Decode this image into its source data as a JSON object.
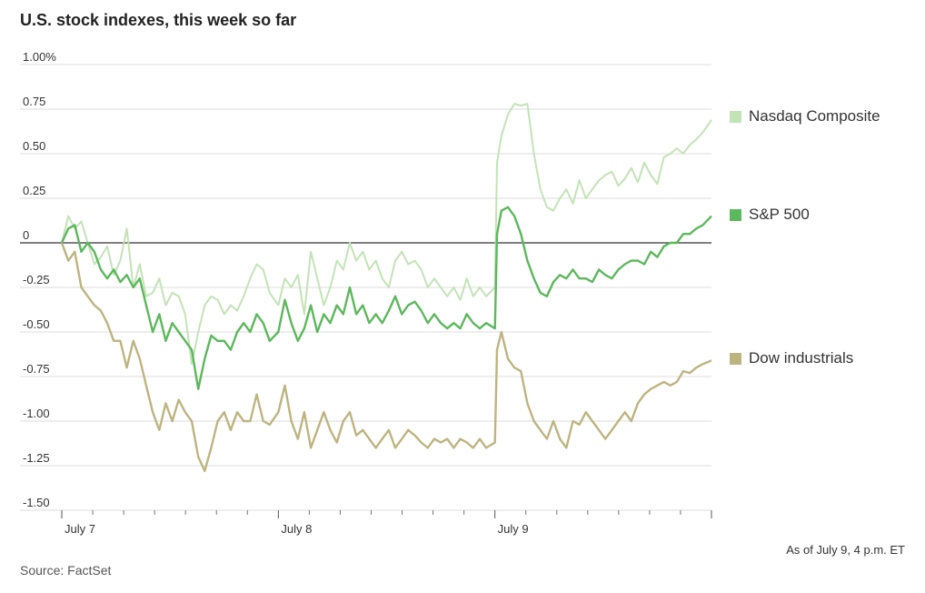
{
  "title": "U.S. stock indexes, this week so far",
  "note": "As of July 9, 4 p.m. ET",
  "source": "Source: FactSet",
  "chart_data": {
    "type": "line",
    "title": "U.S. stock indexes, this week so far",
    "ylim": [
      -1.5,
      1.0
    ],
    "yticks": [
      {
        "value": 1.0,
        "label": "1.00%"
      },
      {
        "value": 0.75,
        "label": "0.75"
      },
      {
        "value": 0.5,
        "label": "0.50"
      },
      {
        "value": 0.25,
        "label": "0.25"
      },
      {
        "value": 0.0,
        "label": "0"
      },
      {
        "value": -0.25,
        "label": "-0.25"
      },
      {
        "value": -0.5,
        "label": "-0.50"
      },
      {
        "value": -0.75,
        "label": "-0.75"
      },
      {
        "value": -1.0,
        "label": "-1.00"
      },
      {
        "value": -1.25,
        "label": "-1.25"
      },
      {
        "value": -1.5,
        "label": "-1.50"
      }
    ],
    "xlabels": [
      {
        "day": 0,
        "label": "July 7"
      },
      {
        "day": 1,
        "label": "July 8"
      },
      {
        "day": 2,
        "label": "July 9"
      }
    ],
    "grid": true,
    "legend_position": "right",
    "series": [
      {
        "name": "Nasdaq Composite",
        "color": "#c3e3b6",
        "x": [
          0,
          0.03,
          0.06,
          0.09,
          0.12,
          0.15,
          0.18,
          0.21,
          0.24,
          0.27,
          0.3,
          0.33,
          0.36,
          0.39,
          0.42,
          0.45,
          0.48,
          0.51,
          0.54,
          0.57,
          0.6,
          0.63,
          0.66,
          0.69,
          0.72,
          0.75,
          0.78,
          0.81,
          0.84,
          0.87,
          0.9,
          0.93,
          0.96,
          1.0,
          1.03,
          1.06,
          1.09,
          1.12,
          1.15,
          1.18,
          1.21,
          1.24,
          1.27,
          1.3,
          1.33,
          1.36,
          1.39,
          1.42,
          1.45,
          1.48,
          1.51,
          1.54,
          1.57,
          1.6,
          1.63,
          1.66,
          1.69,
          1.72,
          1.75,
          1.78,
          1.81,
          1.84,
          1.87,
          1.9,
          1.93,
          1.96,
          2.0,
          2.01,
          2.03,
          2.06,
          2.09,
          2.12,
          2.15,
          2.18,
          2.21,
          2.24,
          2.27,
          2.3,
          2.33,
          2.36,
          2.39,
          2.42,
          2.45,
          2.48,
          2.51,
          2.54,
          2.57,
          2.6,
          2.63,
          2.66,
          2.69,
          2.72,
          2.75,
          2.78,
          2.81,
          2.84,
          2.87,
          2.9,
          2.93,
          2.96,
          3.0
        ],
        "values": [
          0.0,
          0.15,
          0.08,
          0.12,
          0.0,
          -0.12,
          -0.08,
          -0.02,
          -0.18,
          -0.1,
          0.08,
          -0.25,
          -0.12,
          -0.3,
          -0.28,
          -0.2,
          -0.35,
          -0.28,
          -0.3,
          -0.4,
          -0.68,
          -0.5,
          -0.35,
          -0.3,
          -0.32,
          -0.4,
          -0.35,
          -0.38,
          -0.3,
          -0.2,
          -0.12,
          -0.15,
          -0.28,
          -0.35,
          -0.2,
          -0.25,
          -0.18,
          -0.4,
          -0.05,
          -0.2,
          -0.35,
          -0.25,
          -0.1,
          -0.15,
          0.0,
          -0.1,
          -0.05,
          -0.15,
          -0.1,
          -0.2,
          -0.25,
          -0.1,
          -0.05,
          -0.12,
          -0.1,
          -0.15,
          -0.25,
          -0.2,
          -0.25,
          -0.3,
          -0.25,
          -0.32,
          -0.2,
          -0.3,
          -0.25,
          -0.3,
          -0.25,
          0.45,
          0.6,
          0.72,
          0.78,
          0.77,
          0.78,
          0.5,
          0.3,
          0.2,
          0.18,
          0.25,
          0.3,
          0.22,
          0.35,
          0.25,
          0.3,
          0.35,
          0.38,
          0.4,
          0.32,
          0.36,
          0.42,
          0.34,
          0.45,
          0.38,
          0.33,
          0.48,
          0.5,
          0.53,
          0.5,
          0.55,
          0.58,
          0.62,
          0.69
        ]
      },
      {
        "name": "S&P 500",
        "color": "#5cb85c",
        "x": [
          0,
          0.03,
          0.06,
          0.09,
          0.12,
          0.15,
          0.18,
          0.21,
          0.24,
          0.27,
          0.3,
          0.33,
          0.36,
          0.39,
          0.42,
          0.45,
          0.48,
          0.51,
          0.54,
          0.57,
          0.6,
          0.63,
          0.66,
          0.69,
          0.72,
          0.75,
          0.78,
          0.81,
          0.84,
          0.87,
          0.9,
          0.93,
          0.96,
          1.0,
          1.03,
          1.06,
          1.09,
          1.12,
          1.15,
          1.18,
          1.21,
          1.24,
          1.27,
          1.3,
          1.33,
          1.36,
          1.39,
          1.42,
          1.45,
          1.48,
          1.51,
          1.54,
          1.57,
          1.6,
          1.63,
          1.66,
          1.69,
          1.72,
          1.75,
          1.78,
          1.81,
          1.84,
          1.87,
          1.9,
          1.93,
          1.96,
          2.0,
          2.01,
          2.03,
          2.06,
          2.09,
          2.12,
          2.15,
          2.18,
          2.21,
          2.24,
          2.27,
          2.3,
          2.33,
          2.36,
          2.39,
          2.42,
          2.45,
          2.48,
          2.51,
          2.54,
          2.57,
          2.6,
          2.63,
          2.66,
          2.69,
          2.72,
          2.75,
          2.78,
          2.81,
          2.84,
          2.87,
          2.9,
          2.93,
          2.96,
          3.0
        ],
        "values": [
          0.0,
          0.08,
          0.1,
          -0.05,
          0.0,
          -0.05,
          -0.15,
          -0.2,
          -0.15,
          -0.22,
          -0.18,
          -0.25,
          -0.2,
          -0.35,
          -0.5,
          -0.4,
          -0.55,
          -0.45,
          -0.5,
          -0.55,
          -0.6,
          -0.82,
          -0.65,
          -0.52,
          -0.55,
          -0.55,
          -0.6,
          -0.5,
          -0.45,
          -0.5,
          -0.4,
          -0.45,
          -0.55,
          -0.5,
          -0.32,
          -0.45,
          -0.55,
          -0.48,
          -0.35,
          -0.5,
          -0.4,
          -0.45,
          -0.35,
          -0.4,
          -0.25,
          -0.4,
          -0.35,
          -0.45,
          -0.4,
          -0.45,
          -0.38,
          -0.3,
          -0.4,
          -0.35,
          -0.33,
          -0.38,
          -0.45,
          -0.4,
          -0.45,
          -0.48,
          -0.45,
          -0.48,
          -0.4,
          -0.45,
          -0.48,
          -0.45,
          -0.48,
          0.05,
          0.18,
          0.2,
          0.15,
          0.05,
          -0.1,
          -0.2,
          -0.28,
          -0.3,
          -0.22,
          -0.18,
          -0.2,
          -0.15,
          -0.2,
          -0.2,
          -0.22,
          -0.15,
          -0.18,
          -0.2,
          -0.15,
          -0.12,
          -0.1,
          -0.1,
          -0.12,
          -0.05,
          -0.08,
          -0.02,
          0.0,
          0.0,
          0.05,
          0.05,
          0.08,
          0.1,
          0.15
        ]
      },
      {
        "name": "Dow industrials",
        "color": "#bdb480",
        "x": [
          0,
          0.03,
          0.06,
          0.09,
          0.12,
          0.15,
          0.18,
          0.21,
          0.24,
          0.27,
          0.3,
          0.33,
          0.36,
          0.39,
          0.42,
          0.45,
          0.48,
          0.51,
          0.54,
          0.57,
          0.6,
          0.63,
          0.66,
          0.69,
          0.72,
          0.75,
          0.78,
          0.81,
          0.84,
          0.87,
          0.9,
          0.93,
          0.96,
          1.0,
          1.03,
          1.06,
          1.09,
          1.12,
          1.15,
          1.18,
          1.21,
          1.24,
          1.27,
          1.3,
          1.33,
          1.36,
          1.39,
          1.42,
          1.45,
          1.48,
          1.51,
          1.54,
          1.57,
          1.6,
          1.63,
          1.66,
          1.69,
          1.72,
          1.75,
          1.78,
          1.81,
          1.84,
          1.87,
          1.9,
          1.93,
          1.96,
          2.0,
          2.01,
          2.03,
          2.06,
          2.09,
          2.12,
          2.15,
          2.18,
          2.21,
          2.24,
          2.27,
          2.3,
          2.33,
          2.36,
          2.39,
          2.42,
          2.45,
          2.48,
          2.51,
          2.54,
          2.57,
          2.6,
          2.63,
          2.66,
          2.69,
          2.72,
          2.75,
          2.78,
          2.81,
          2.84,
          2.87,
          2.9,
          2.93,
          2.96,
          3.0
        ],
        "values": [
          0.0,
          -0.1,
          -0.05,
          -0.25,
          -0.3,
          -0.35,
          -0.38,
          -0.45,
          -0.55,
          -0.55,
          -0.7,
          -0.55,
          -0.65,
          -0.8,
          -0.95,
          -1.05,
          -0.9,
          -1.0,
          -0.88,
          -0.95,
          -1.0,
          -1.2,
          -1.28,
          -1.15,
          -1.0,
          -0.95,
          -1.05,
          -0.95,
          -1.0,
          -1.0,
          -0.85,
          -1.0,
          -1.02,
          -0.95,
          -0.8,
          -1.0,
          -1.1,
          -0.95,
          -1.15,
          -1.05,
          -0.95,
          -1.05,
          -1.12,
          -1.0,
          -0.95,
          -1.08,
          -1.05,
          -1.1,
          -1.15,
          -1.1,
          -1.05,
          -1.15,
          -1.1,
          -1.05,
          -1.08,
          -1.12,
          -1.15,
          -1.1,
          -1.12,
          -1.1,
          -1.15,
          -1.1,
          -1.12,
          -1.15,
          -1.1,
          -1.15,
          -1.12,
          -0.6,
          -0.5,
          -0.65,
          -0.7,
          -0.72,
          -0.9,
          -1.0,
          -1.05,
          -1.1,
          -1.0,
          -1.1,
          -1.15,
          -1.0,
          -1.02,
          -0.95,
          -1.0,
          -1.05,
          -1.1,
          -1.05,
          -1.0,
          -0.95,
          -1.0,
          -0.9,
          -0.85,
          -0.82,
          -0.8,
          -0.78,
          -0.8,
          -0.78,
          -0.72,
          -0.73,
          -0.7,
          -0.68,
          -0.66
        ]
      }
    ]
  }
}
